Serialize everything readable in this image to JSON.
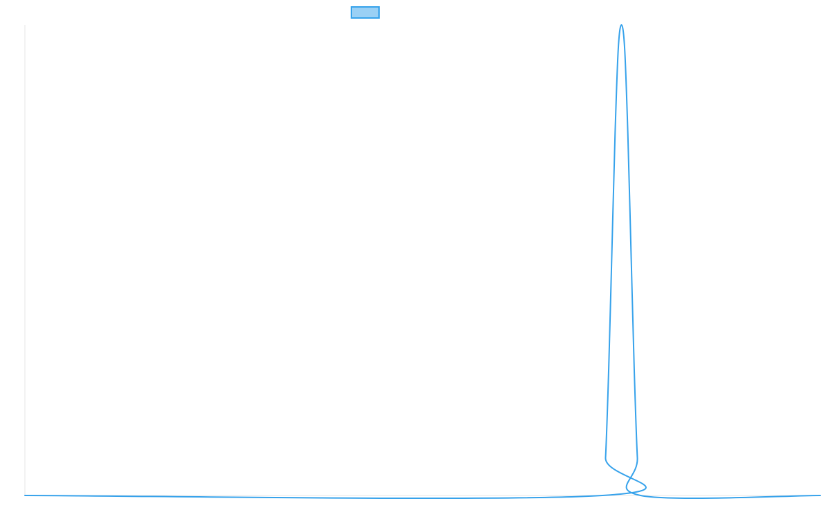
{
  "chart_data": {
    "type": "line",
    "title": "",
    "xlabel": "",
    "ylabel": "",
    "grid": false,
    "legend": {
      "placement": "top-center",
      "entries": [
        {
          "label": "",
          "swatch_fill": "#9ad0f5",
          "swatch_stroke": "#36a2eb"
        }
      ]
    },
    "xlim": [
      0,
      1
    ],
    "ylim": [
      0,
      1
    ],
    "series": [
      {
        "color": "#36a2eb",
        "points": [
          [
            0.0,
            0.0
          ],
          [
            0.726,
            0.0
          ],
          [
            0.73,
            0.08
          ],
          [
            0.734,
            0.27
          ],
          [
            0.738,
            0.52
          ],
          [
            0.742,
            0.77
          ],
          [
            0.746,
            0.95
          ],
          [
            0.75,
            1.0
          ],
          [
            0.754,
            0.95
          ],
          [
            0.758,
            0.77
          ],
          [
            0.762,
            0.52
          ],
          [
            0.766,
            0.27
          ],
          [
            0.77,
            0.08
          ],
          [
            0.774,
            0.0
          ],
          [
            1.0,
            0.0
          ]
        ]
      }
    ],
    "colors": {
      "line": "#36a2eb",
      "legend_fill": "#9ad0f5",
      "axis": "#e6e6e6",
      "baseline": "#36a2eb"
    }
  }
}
